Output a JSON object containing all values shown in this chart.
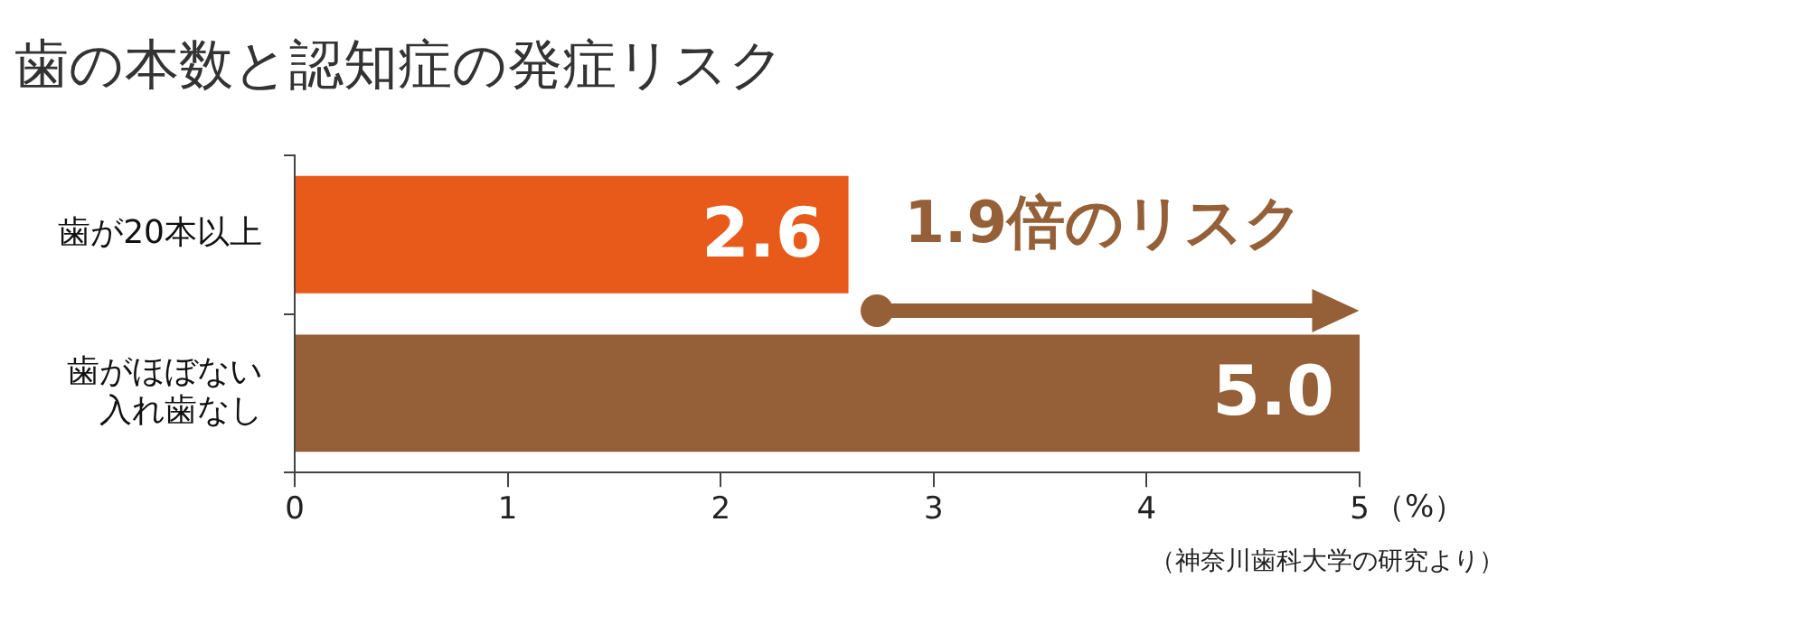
{
  "chart_data": {
    "type": "bar",
    "orientation": "horizontal",
    "title": "歯の本数と認知症の発症リスク",
    "categories": [
      "歯が20本以上",
      "歯がほぼない入れ歯なし"
    ],
    "values": [
      2.6,
      5.0
    ],
    "value_labels": [
      "2.6",
      "5.0"
    ],
    "colors": [
      "#e85a1a",
      "#956037"
    ],
    "xlabel": "（%）",
    "xlim": [
      0,
      5
    ],
    "xticks": [
      0,
      1,
      2,
      3,
      4,
      5
    ],
    "annotations": [
      "1.9倍のリスク",
      "（神奈川歯科大学の研究より）"
    ]
  }
}
